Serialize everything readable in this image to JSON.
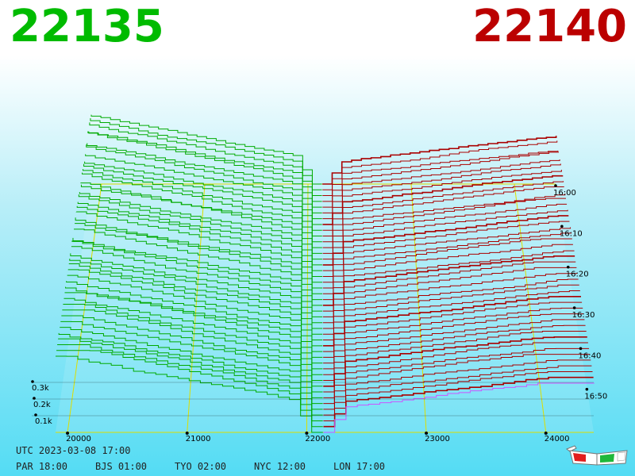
{
  "header": {
    "bid_price": "22135",
    "ask_price": "22140",
    "bid_color": "#00bb00",
    "ask_color": "#bb0000"
  },
  "footer": {
    "utc": "UTC 2023-03-08 17:00",
    "zones": [
      "PAR 18:00",
      "BJS 01:00",
      "TYO 02:00",
      "NYC 12:00",
      "LON 17:00"
    ]
  },
  "icons": {
    "glasses": "3d-glasses-icon"
  },
  "chart_data": {
    "type": "area",
    "x_ticks": [
      "20000",
      "21000",
      "22000",
      "23000",
      "24000"
    ],
    "volume_ticks": [
      "0.1k",
      "0.2k",
      "0.3k"
    ],
    "time_ticks": [
      "16:00",
      "16:10",
      "16:20",
      "16:30",
      "16:40",
      "16:50"
    ],
    "price_range": [
      19900,
      24400
    ],
    "mid_price": 22135,
    "bid_series_color": "#00aa00",
    "ask_series_color": "#aa0000",
    "latest_series_color": "#cc55ff",
    "grid_color": "#dddd00"
  }
}
